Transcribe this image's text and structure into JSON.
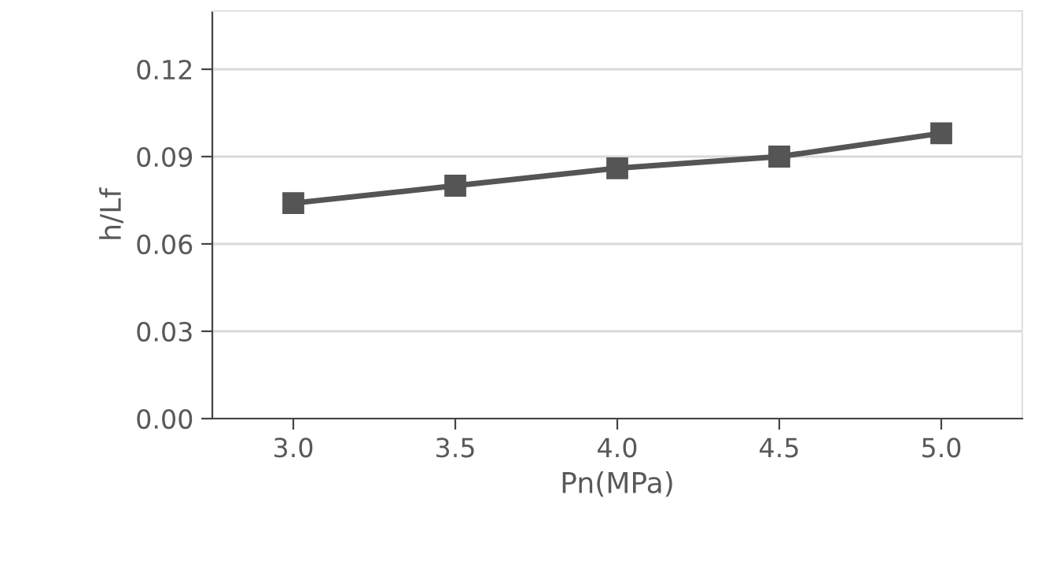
{
  "chart_data": {
    "type": "line",
    "xlabel": "Pn(MPa)",
    "ylabel": "h/Lf",
    "x": [
      3.0,
      3.5,
      4.0,
      4.5,
      5.0
    ],
    "series": [
      {
        "color": "#555555",
        "values": [
          0.074,
          0.08,
          0.086,
          0.09,
          0.098
        ]
      }
    ],
    "xlim": [
      2.75,
      5.25
    ],
    "xticks": [
      {
        "value": 3.0,
        "label": "3.0"
      },
      {
        "value": 3.5,
        "label": "3.5"
      },
      {
        "value": 4.0,
        "label": "4.0"
      },
      {
        "value": 4.5,
        "label": "4.5"
      },
      {
        "value": 5.0,
        "label": "5.0"
      }
    ],
    "ylim": [
      0,
      0.14
    ],
    "yticks": [
      {
        "value": 0,
        "label": "0.00"
      },
      {
        "value": 0.03,
        "label": "0.03"
      },
      {
        "value": 0.06,
        "label": "0.06"
      },
      {
        "value": 0.09,
        "label": "0.09"
      },
      {
        "value": 0.12,
        "label": "0.12"
      }
    ],
    "grid": "y",
    "marker": "square",
    "line_style": "solid"
  }
}
